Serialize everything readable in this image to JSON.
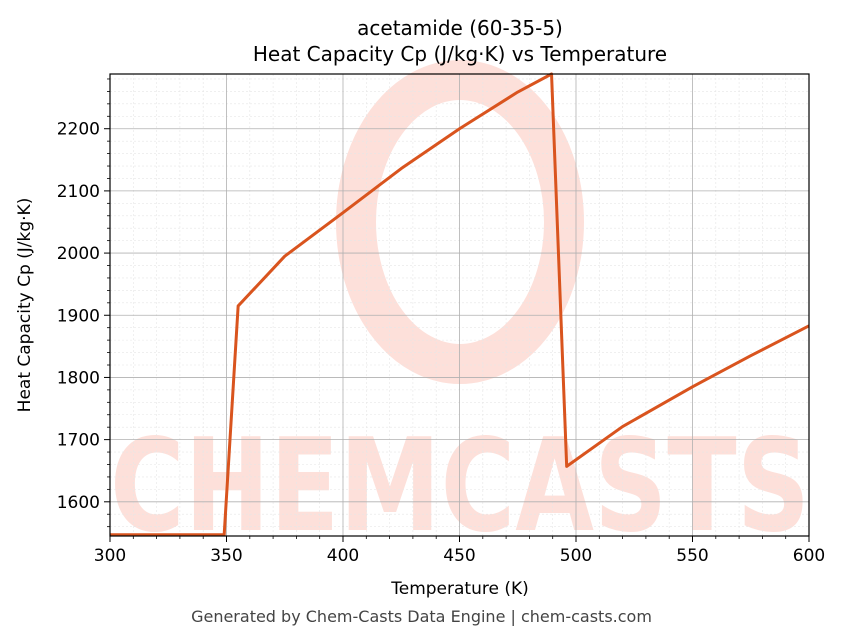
{
  "title_line1": "acetamide (60-35-5)",
  "title_line2": "Heat Capacity Cp (J/kg·K) vs Temperature",
  "footer": "Generated by Chem-Casts Data Engine | chem-casts.com",
  "watermark": "CHEMCASTS",
  "colors": {
    "line": "#d9541e",
    "watermark": "#fde0da",
    "grid_major": "#b0b0b0",
    "grid_minor": "#e6e6e6"
  },
  "chart_data": {
    "type": "line",
    "xlabel": "Temperature (K)",
    "ylabel": "Heat Capacity Cp (J/kg·K)",
    "xlim": [
      300,
      600
    ],
    "ylim": [
      1545,
      2288
    ],
    "xticks": [
      300,
      350,
      400,
      450,
      500,
      550,
      600
    ],
    "yticks": [
      1600,
      1700,
      1800,
      1900,
      2000,
      2100,
      2200
    ],
    "grid": "major and minor",
    "series": [
      {
        "x": [
          300,
          349,
          355,
          375,
          400,
          425,
          450,
          475,
          489.5,
          496,
          520,
          550,
          575,
          600
        ],
        "y": [
          1547,
          1547,
          1915,
          1995,
          2065,
          2136,
          2200,
          2259,
          2288,
          1657,
          1721,
          1785,
          1835,
          1883
        ]
      }
    ]
  }
}
